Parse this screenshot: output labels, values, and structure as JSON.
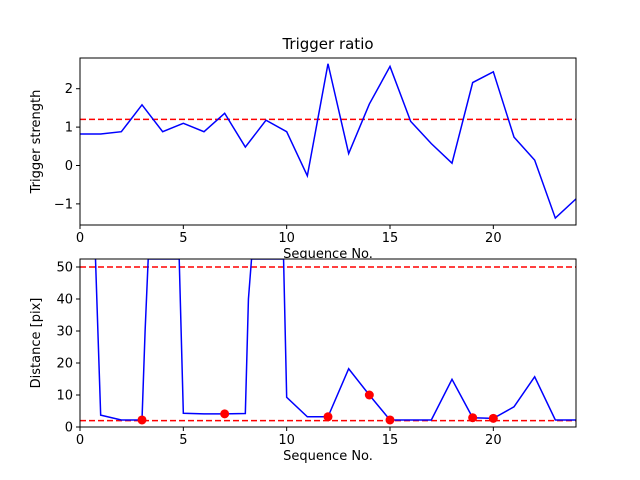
{
  "chart_data": [
    {
      "type": "line",
      "title": "Trigger ratio",
      "xlabel": "Sequence No.",
      "ylabel": "Trigger strength",
      "xlim": [
        0,
        24
      ],
      "ylim": [
        -1.55,
        2.8
      ],
      "xticks": [
        0,
        5,
        10,
        15,
        20
      ],
      "yticks": [
        -1,
        0,
        1,
        2
      ],
      "ytick_labels": [
        "−1",
        "0",
        "1",
        "2"
      ],
      "grid": false,
      "series": [
        {
          "color": "#0000ff",
          "x": [
            0,
            1,
            2,
            3,
            4,
            5,
            6,
            7,
            8,
            9,
            10,
            11,
            12,
            13,
            14,
            15,
            16,
            17,
            18,
            19,
            20,
            21,
            22,
            23,
            24
          ],
          "y": [
            0.82,
            0.82,
            0.88,
            1.58,
            0.88,
            1.1,
            0.88,
            1.36,
            0.48,
            1.18,
            0.88,
            -0.27,
            2.65,
            0.31,
            1.6,
            2.58,
            1.15,
            0.57,
            0.06,
            2.16,
            2.44,
            0.74,
            0.14,
            -1.37,
            -0.87
          ]
        }
      ],
      "hlines": [
        {
          "y": 1.2,
          "color": "#ff0000",
          "style": "dashed"
        }
      ]
    },
    {
      "type": "line",
      "title": "",
      "xlabel": "Sequence No.",
      "ylabel": "Distance [pix]",
      "xlim": [
        0,
        24
      ],
      "ylim": [
        0,
        52.5
      ],
      "xticks": [
        0,
        5,
        10,
        15,
        20
      ],
      "yticks": [
        0,
        10,
        20,
        30,
        40,
        50
      ],
      "grid": false,
      "series": [
        {
          "color": "#0000ff",
          "x": [
            0.75,
            1,
            2,
            3,
            3.15,
            3.3,
            4.6,
            4.8,
            5,
            6,
            7,
            8,
            8.15,
            8.3,
            9.75,
            9.85,
            10,
            11,
            12,
            13,
            14,
            15,
            16,
            17,
            18,
            19,
            20,
            21,
            22,
            23,
            24
          ],
          "y": [
            52.5,
            3.7,
            2.2,
            2.2,
            30,
            52.5,
            52.5,
            52.5,
            4.3,
            4.1,
            4.1,
            4.2,
            40,
            52.5,
            52.5,
            52.5,
            9.3,
            3.2,
            3.2,
            18.2,
            10.0,
            2.2,
            2.2,
            2.2,
            14.9,
            2.9,
            2.7,
            6.3,
            15.7,
            2.2,
            2.2
          ]
        }
      ],
      "markers": {
        "color": "#ff0000",
        "x": [
          3,
          7,
          12,
          14,
          15,
          19,
          20
        ],
        "y": [
          2.2,
          4.1,
          3.2,
          10.0,
          2.2,
          2.9,
          2.7
        ]
      },
      "hlines": [
        {
          "y": 50,
          "color": "#ff0000",
          "style": "dashed"
        },
        {
          "y": 2,
          "color": "#ff0000",
          "style": "dashed"
        }
      ]
    }
  ]
}
